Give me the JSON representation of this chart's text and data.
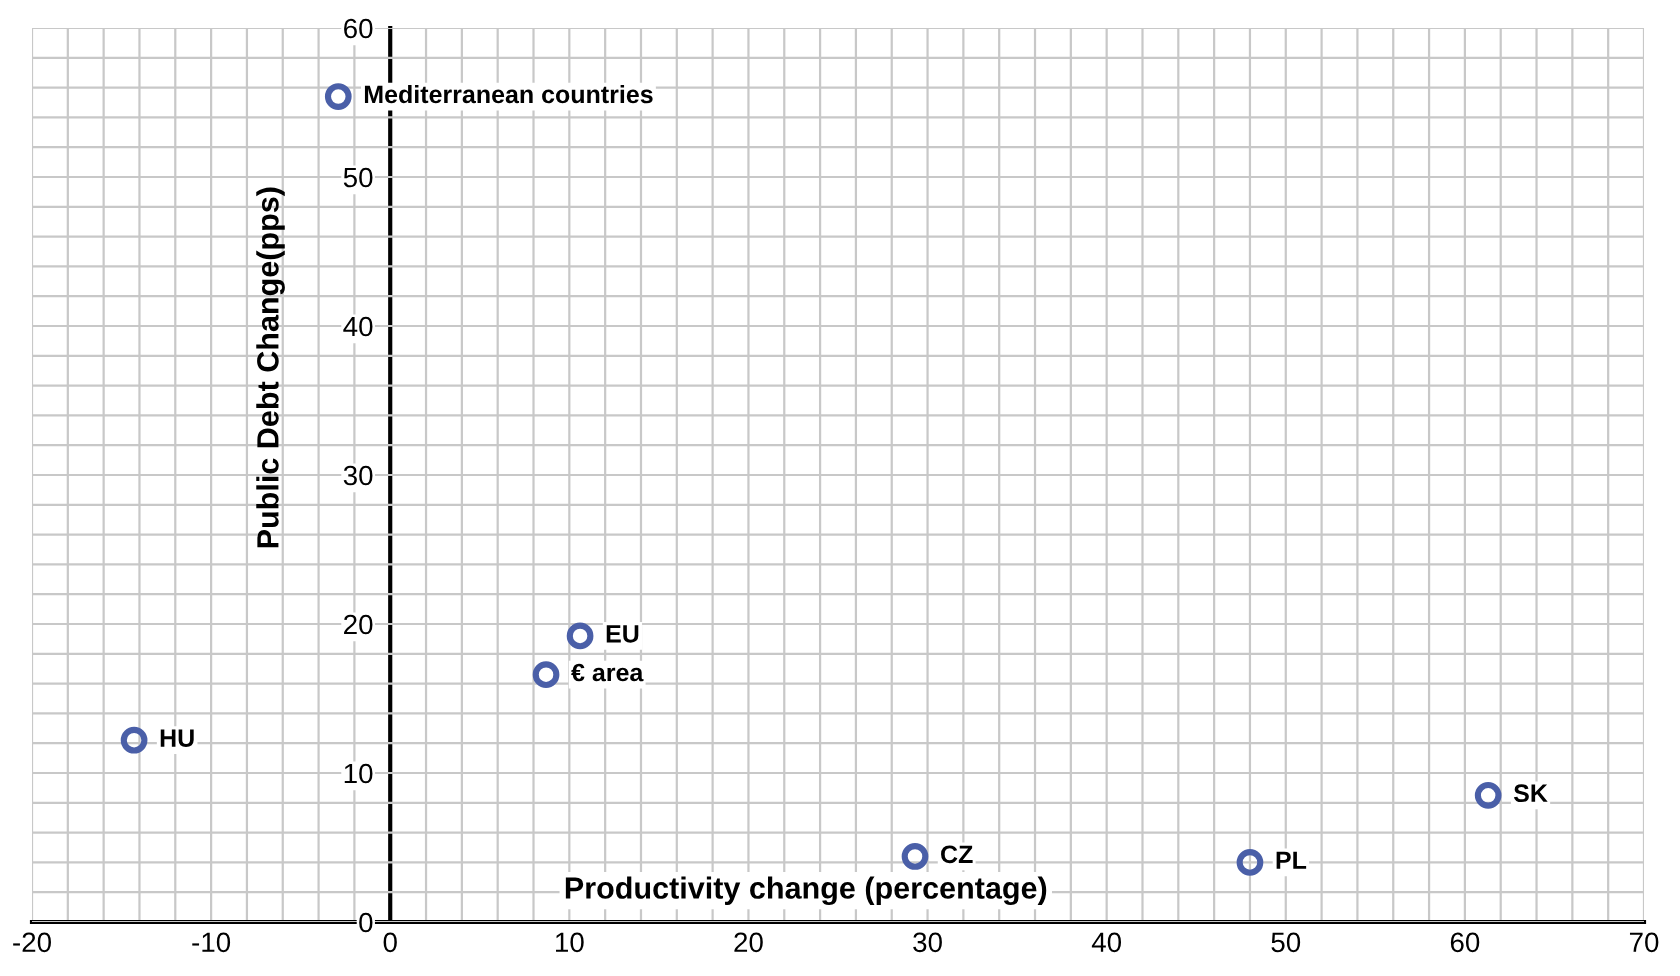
{
  "chart_data": {
    "type": "scatter",
    "xlabel": "Productivity change (percentage)",
    "ylabel": "Public Debt Change(pps)",
    "x": [
      -2.9,
      10.6,
      8.7,
      -14.3,
      29.3,
      48.0,
      61.3
    ],
    "values": [
      55.4,
      19.2,
      16.6,
      12.2,
      4.4,
      4.0,
      8.5
    ],
    "color": "#4a5fa8",
    "marker": "circle",
    "grid": true,
    "xlim": [
      -20,
      70
    ],
    "ylim": [
      0,
      60
    ],
    "xticks": [
      -20,
      {
        "value": -18,
        "label": null
      },
      {
        "value": -16,
        "label": null
      },
      {
        "value": -14,
        "label": null
      },
      {
        "value": -12,
        "label": null
      },
      -10,
      {
        "value": -8,
        "label": null
      },
      {
        "value": -6,
        "label": null
      },
      {
        "value": -4,
        "label": null
      },
      {
        "value": -2,
        "label": null
      },
      0,
      {
        "value": 2,
        "label": null
      },
      {
        "value": 4,
        "label": null
      },
      {
        "value": 6,
        "label": null
      },
      {
        "value": 8,
        "label": null
      },
      10,
      {
        "value": 12,
        "label": null
      },
      {
        "value": 14,
        "label": null
      },
      {
        "value": 16,
        "label": null
      },
      {
        "value": 18,
        "label": null
      },
      20,
      {
        "value": 22,
        "label": null
      },
      {
        "value": 24,
        "label": null
      },
      {
        "value": 26,
        "label": null
      },
      {
        "value": 28,
        "label": null
      },
      30,
      {
        "value": 32,
        "label": null
      },
      {
        "value": 34,
        "label": null
      },
      {
        "value": 36,
        "label": null
      },
      {
        "value": 38,
        "label": null
      },
      40,
      {
        "value": 42,
        "label": null
      },
      {
        "value": 44,
        "label": null
      },
      {
        "value": 46,
        "label": null
      },
      {
        "value": 48,
        "label": null
      },
      50,
      {
        "value": 52,
        "label": null
      },
      {
        "value": 54,
        "label": null
      },
      {
        "value": 56,
        "label": null
      },
      {
        "value": 58,
        "label": null
      },
      60,
      {
        "value": 62,
        "label": null
      },
      {
        "value": 64,
        "label": null
      },
      {
        "value": 66,
        "label": null
      },
      {
        "value": 68,
        "label": null
      },
      70
    ],
    "yticks": [
      0,
      {
        "value": 2,
        "label": null
      },
      {
        "value": 4,
        "label": null
      },
      {
        "value": 6,
        "label": null
      },
      {
        "value": 8,
        "label": null
      },
      10,
      {
        "value": 12,
        "label": null
      },
      {
        "value": 14,
        "label": null
      },
      {
        "value": 16,
        "label": null
      },
      {
        "value": 18,
        "label": null
      },
      20,
      {
        "value": 22,
        "label": null
      },
      {
        "value": 24,
        "label": null
      },
      {
        "value": 26,
        "label": null
      },
      {
        "value": 28,
        "label": null
      },
      30,
      {
        "value": 32,
        "label": null
      },
      {
        "value": 34,
        "label": null
      },
      {
        "value": 36,
        "label": null
      },
      {
        "value": 38,
        "label": null
      },
      40,
      {
        "value": 42,
        "label": null
      },
      {
        "value": 44,
        "label": null
      },
      {
        "value": 46,
        "label": null
      },
      {
        "value": 48,
        "label": null
      },
      50,
      {
        "value": 52,
        "label": null
      },
      {
        "value": 54,
        "label": null
      },
      {
        "value": 56,
        "label": null
      },
      {
        "value": 58,
        "label": null
      },
      60
    ],
    "annotations": [
      {
        "text": "Mediterranean countries",
        "x": -2.9,
        "y": 55.4
      },
      {
        "text": "EU",
        "x": 10.6,
        "y": 19.2
      },
      {
        "text": "€ area",
        "x": 8.7,
        "y": 16.6
      },
      {
        "text": "HU",
        "x": -14.3,
        "y": 12.2
      },
      {
        "text": "CZ",
        "x": 29.3,
        "y": 4.4
      },
      {
        "text": "PL",
        "x": 48.0,
        "y": 4.0
      },
      {
        "text": "SK",
        "x": 61.3,
        "y": 8.5
      }
    ]
  }
}
